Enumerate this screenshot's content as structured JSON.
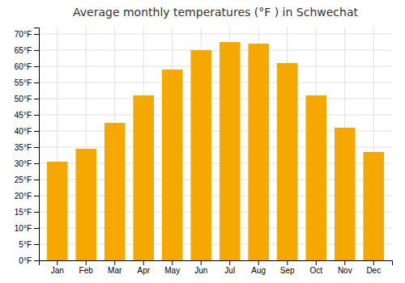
{
  "chart_data": {
    "type": "bar",
    "title": "Average monthly temperatures (°F ) in Schwechat",
    "categories": [
      "Jan",
      "Feb",
      "Mar",
      "Apr",
      "May",
      "Jun",
      "Jul",
      "Aug",
      "Sep",
      "Oct",
      "Nov",
      "Dec"
    ],
    "values": [
      30.5,
      34.5,
      42.5,
      51.0,
      59.0,
      65.0,
      67.5,
      67.0,
      61.0,
      51.0,
      41.0,
      33.5
    ],
    "color": "#F5A800",
    "ylim": [
      0,
      72
    ],
    "yticks": [
      {
        "value": 0,
        "label": "0°F"
      },
      {
        "value": 5,
        "label": "5°F"
      },
      {
        "value": 10,
        "label": "10°F"
      },
      {
        "value": 15,
        "label": "15°F"
      },
      {
        "value": 20,
        "label": "20°F"
      },
      {
        "value": 25,
        "label": "25°F"
      },
      {
        "value": 30,
        "label": "30°F"
      },
      {
        "value": 35,
        "label": "35°F"
      },
      {
        "value": 40,
        "label": "40°F"
      },
      {
        "value": 45,
        "label": "45°F"
      },
      {
        "value": 50,
        "label": "50°F"
      },
      {
        "value": 55,
        "label": "55°F"
      },
      {
        "value": 60,
        "label": "60°F"
      },
      {
        "value": 65,
        "label": "65°F"
      },
      {
        "value": 70,
        "label": "70°F"
      }
    ],
    "grid": true
  }
}
